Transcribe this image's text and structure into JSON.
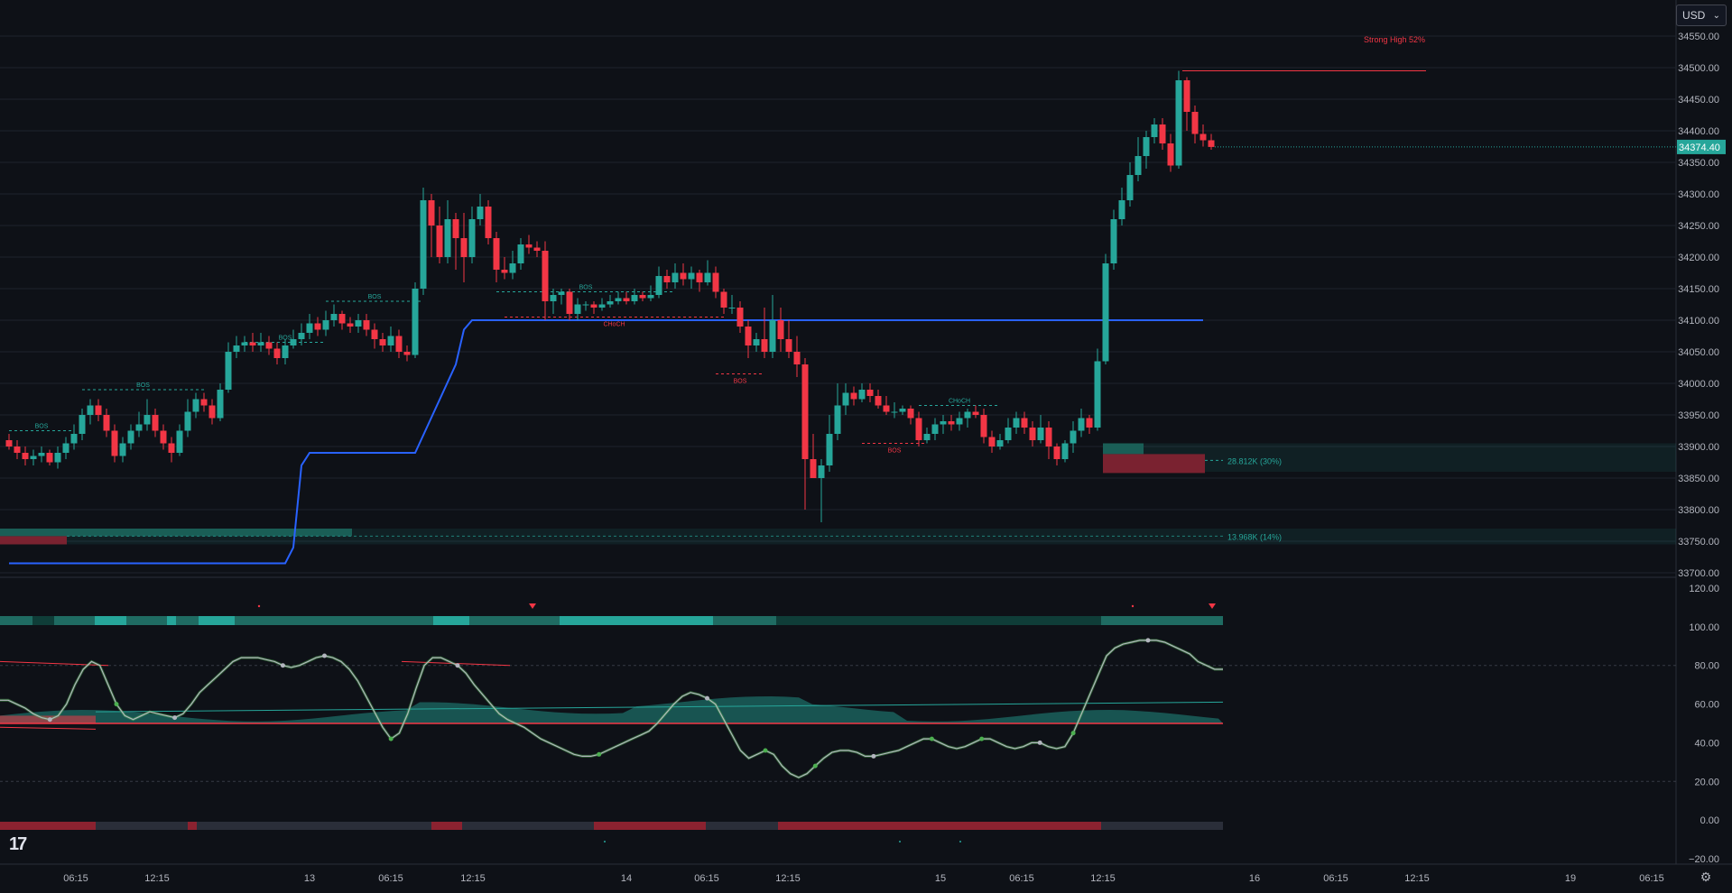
{
  "price_axis": {
    "currency": "USD",
    "current_price": "34374.40",
    "current_price_value": 34374.4
  },
  "x_axis_labels": [
    "06:15",
    "12:15",
    "13",
    "06:15",
    "12:15",
    "14",
    "06:15",
    "12:15",
    "15",
    "06:15",
    "12:15",
    "16",
    "06:15",
    "12:15",
    "19",
    "06:15"
  ],
  "annotations": {
    "strong_high": "Strong High 52%",
    "ob_upper": "28.812K (30%)",
    "ob_lower": "13.968K (14%)",
    "bos": "BOS",
    "choch": "CHoCH"
  },
  "colors": {
    "bull": "#26a69a",
    "bear": "#f23645",
    "trail": "#2962ff",
    "bg": "#0e1117",
    "grid": "#1e222d",
    "text": "#b2b5be"
  },
  "chart_data": [
    {
      "type": "candlestick",
      "title": "",
      "ylim": [
        33700,
        34580
      ],
      "yticks": [
        34550,
        34500,
        34450,
        34400,
        34350,
        34300,
        34250,
        34200,
        34150,
        34100,
        34050,
        34000,
        33950,
        33900,
        33850,
        33800,
        33750,
        33700
      ],
      "candles": [
        [
          33910,
          33900,
          33920,
          33895
        ],
        [
          33900,
          33890,
          33910,
          33880
        ],
        [
          33890,
          33880,
          33900,
          33870
        ],
        [
          33880,
          33885,
          33895,
          33870
        ],
        [
          33885,
          33890,
          33900,
          33875
        ],
        [
          33890,
          33875,
          33895,
          33870
        ],
        [
          33875,
          33890,
          33900,
          33865
        ],
        [
          33890,
          33905,
          33915,
          33880
        ],
        [
          33905,
          33920,
          33935,
          33895
        ],
        [
          33920,
          33950,
          33960,
          33910
        ],
        [
          33950,
          33965,
          33975,
          33935
        ],
        [
          33965,
          33950,
          33975,
          33940
        ],
        [
          33950,
          33925,
          33960,
          33915
        ],
        [
          33925,
          33885,
          33935,
          33875
        ],
        [
          33885,
          33905,
          33915,
          33875
        ],
        [
          33905,
          33925,
          33935,
          33895
        ],
        [
          33925,
          33935,
          33955,
          33915
        ],
        [
          33935,
          33950,
          33975,
          33925
        ],
        [
          33950,
          33925,
          33960,
          33915
        ],
        [
          33925,
          33905,
          33935,
          33895
        ],
        [
          33905,
          33890,
          33915,
          33875
        ],
        [
          33890,
          33925,
          33935,
          33885
        ],
        [
          33925,
          33955,
          33975,
          33915
        ],
        [
          33955,
          33975,
          33985,
          33945
        ],
        [
          33975,
          33965,
          33985,
          33955
        ],
        [
          33965,
          33945,
          33975,
          33935
        ],
        [
          33945,
          33990,
          34000,
          33940
        ],
        [
          33990,
          34050,
          34065,
          33985
        ],
        [
          34050,
          34060,
          34075,
          34040
        ],
        [
          34060,
          34065,
          34075,
          34050
        ],
        [
          34065,
          34060,
          34080,
          34050
        ],
        [
          34060,
          34065,
          34080,
          34050
        ],
        [
          34065,
          34055,
          34075,
          34045
        ],
        [
          34055,
          34040,
          34065,
          34030
        ],
        [
          34040,
          34060,
          34070,
          34030
        ],
        [
          34060,
          34070,
          34085,
          34055
        ],
        [
          34070,
          34080,
          34095,
          34060
        ],
        [
          34080,
          34095,
          34110,
          34070
        ],
        [
          34095,
          34085,
          34105,
          34075
        ],
        [
          34085,
          34100,
          34115,
          34075
        ],
        [
          34100,
          34110,
          34125,
          34090
        ],
        [
          34110,
          34095,
          34115,
          34085
        ],
        [
          34095,
          34090,
          34105,
          34080
        ],
        [
          34090,
          34100,
          34110,
          34080
        ],
        [
          34100,
          34085,
          34110,
          34075
        ],
        [
          34085,
          34070,
          34095,
          34055
        ],
        [
          34070,
          34060,
          34080,
          34050
        ],
        [
          34060,
          34075,
          34090,
          34050
        ],
        [
          34075,
          34050,
          34085,
          34040
        ],
        [
          34050,
          34045,
          34060,
          34035
        ],
        [
          34045,
          34150,
          34160,
          34040
        ],
        [
          34150,
          34290,
          34310,
          34140
        ],
        [
          34290,
          34250,
          34300,
          34200
        ],
        [
          34250,
          34200,
          34280,
          34190
        ],
        [
          34200,
          34260,
          34290,
          34190
        ],
        [
          34260,
          34230,
          34270,
          34180
        ],
        [
          34230,
          34200,
          34270,
          34160
        ],
        [
          34200,
          34260,
          34280,
          34190
        ],
        [
          34260,
          34280,
          34300,
          34250
        ],
        [
          34280,
          34230,
          34290,
          34220
        ],
        [
          34230,
          34180,
          34240,
          34160
        ],
        [
          34180,
          34175,
          34200,
          34165
        ],
        [
          34175,
          34190,
          34210,
          34165
        ],
        [
          34190,
          34220,
          34230,
          34180
        ],
        [
          34220,
          34215,
          34235,
          34205
        ],
        [
          34215,
          34210,
          34225,
          34200
        ],
        [
          34210,
          34130,
          34225,
          34100
        ],
        [
          34130,
          34140,
          34150,
          34110
        ],
        [
          34140,
          34145,
          34150,
          34125
        ],
        [
          34145,
          34110,
          34150,
          34100
        ],
        [
          34110,
          34125,
          34135,
          34100
        ],
        [
          34125,
          34125,
          34130,
          34115
        ],
        [
          34125,
          34120,
          34130,
          34110
        ],
        [
          34120,
          34125,
          34135,
          34115
        ],
        [
          34125,
          34130,
          34140,
          34120
        ],
        [
          34130,
          34135,
          34145,
          34125
        ],
        [
          34135,
          34130,
          34145,
          34125
        ],
        [
          34130,
          34140,
          34150,
          34125
        ],
        [
          34140,
          34135,
          34145,
          34130
        ],
        [
          34135,
          34140,
          34155,
          34130
        ],
        [
          34140,
          34170,
          34185,
          34135
        ],
        [
          34170,
          34160,
          34180,
          34150
        ],
        [
          34160,
          34175,
          34190,
          34150
        ],
        [
          34175,
          34165,
          34190,
          34155
        ],
        [
          34165,
          34175,
          34185,
          34150
        ],
        [
          34175,
          34160,
          34180,
          34145
        ],
        [
          34160,
          34175,
          34195,
          34155
        ],
        [
          34175,
          34145,
          34185,
          34135
        ],
        [
          34145,
          34120,
          34150,
          34110
        ],
        [
          34120,
          34120,
          34140,
          34110
        ],
        [
          34120,
          34090,
          34130,
          34080
        ],
        [
          34090,
          34060,
          34100,
          34040
        ],
        [
          34060,
          34070,
          34080,
          34050
        ],
        [
          34070,
          34050,
          34120,
          34040
        ],
        [
          34050,
          34100,
          34140,
          34040
        ],
        [
          34100,
          34070,
          34120,
          34050
        ],
        [
          34070,
          34050,
          34100,
          34040
        ],
        [
          34050,
          34030,
          34075,
          34010
        ],
        [
          34030,
          33880,
          34040,
          33800
        ],
        [
          33880,
          33850,
          33920,
          33850
        ],
        [
          33850,
          33870,
          33880,
          33780
        ],
        [
          33870,
          33920,
          33950,
          33860
        ],
        [
          33920,
          33965,
          34000,
          33910
        ],
        [
          33965,
          33985,
          34000,
          33950
        ],
        [
          33985,
          33975,
          33995,
          33965
        ],
        [
          33975,
          33990,
          34000,
          33970
        ],
        [
          33990,
          33980,
          34000,
          33970
        ],
        [
          33980,
          33965,
          33990,
          33960
        ],
        [
          33965,
          33955,
          33980,
          33950
        ],
        [
          33955,
          33955,
          33970,
          33945
        ],
        [
          33955,
          33960,
          33965,
          33950
        ],
        [
          33960,
          33945,
          33965,
          33935
        ],
        [
          33945,
          33910,
          33955,
          33900
        ],
        [
          33910,
          33920,
          33930,
          33905
        ],
        [
          33920,
          33935,
          33945,
          33910
        ],
        [
          33935,
          33940,
          33950,
          33920
        ],
        [
          33940,
          33935,
          33950,
          33925
        ],
        [
          33935,
          33945,
          33955,
          33925
        ],
        [
          33945,
          33955,
          33960,
          33930
        ],
        [
          33955,
          33950,
          33965,
          33945
        ],
        [
          33950,
          33915,
          33960,
          33905
        ],
        [
          33915,
          33900,
          33925,
          33890
        ],
        [
          33900,
          33910,
          33920,
          33895
        ],
        [
          33910,
          33930,
          33945,
          33905
        ],
        [
          33930,
          33945,
          33955,
          33920
        ],
        [
          33945,
          33930,
          33955,
          33920
        ],
        [
          33930,
          33910,
          33940,
          33900
        ],
        [
          33910,
          33930,
          33950,
          33905
        ],
        [
          33930,
          33900,
          33940,
          33880
        ],
        [
          33900,
          33880,
          33905,
          33870
        ],
        [
          33880,
          33905,
          33910,
          33875
        ],
        [
          33905,
          33925,
          33940,
          33890
        ],
        [
          33925,
          33945,
          33960,
          33915
        ],
        [
          33945,
          33930,
          33950,
          33920
        ],
        [
          33930,
          34035,
          34055,
          33925
        ],
        [
          34035,
          34190,
          34205,
          34030
        ],
        [
          34190,
          34260,
          34275,
          34180
        ],
        [
          34260,
          34290,
          34310,
          34250
        ],
        [
          34290,
          34330,
          34350,
          34280
        ],
        [
          34330,
          34360,
          34390,
          34320
        ],
        [
          34360,
          34390,
          34400,
          34340
        ],
        [
          34390,
          34410,
          34420,
          34380
        ],
        [
          34410,
          34380,
          34420,
          34370
        ],
        [
          34380,
          34345,
          34395,
          34335
        ],
        [
          34345,
          34480,
          34495,
          34340
        ],
        [
          34480,
          34430,
          34485,
          34400
        ],
        [
          34430,
          34395,
          34440,
          34380
        ],
        [
          34395,
          34385,
          34410,
          34375
        ],
        [
          34385,
          34374.4,
          34395,
          34370
        ]
      ],
      "bull_color": "#26a69a",
      "bear_color": "#f23645",
      "overlay_line": {
        "color": "#2962ff",
        "points": [
          [
            0,
            33715
          ],
          [
            34,
            33715
          ],
          [
            35,
            33740
          ],
          [
            36,
            33870
          ],
          [
            37,
            33890
          ],
          [
            50,
            33890
          ],
          [
            55,
            34030
          ],
          [
            56,
            34085
          ],
          [
            57,
            34100
          ],
          [
            147,
            34100
          ]
        ]
      }
    },
    {
      "type": "line",
      "title": "",
      "ylim": [
        -20,
        120
      ],
      "yticks": [
        120,
        100,
        80,
        60,
        40,
        20,
        0,
        -20
      ],
      "series": [
        {
          "values": [
            62,
            62,
            60,
            58,
            55,
            53,
            52,
            54,
            60,
            70,
            78,
            82,
            80,
            70,
            60,
            54,
            52,
            54,
            56,
            55,
            54,
            53,
            55,
            60,
            66,
            70,
            74,
            78,
            82,
            84,
            84,
            84,
            83,
            82,
            80,
            79,
            80,
            82,
            84,
            85,
            84,
            82,
            78,
            72,
            64,
            56,
            48,
            42,
            45,
            55,
            68,
            80,
            84,
            84,
            82,
            80,
            76,
            70,
            65,
            60,
            55,
            52,
            50,
            48,
            45,
            42,
            40,
            38,
            36,
            34,
            33,
            33,
            34,
            36,
            38,
            40,
            42,
            44,
            46,
            50,
            55,
            60,
            64,
            66,
            65,
            63,
            60,
            52,
            44,
            36,
            32,
            34,
            36,
            34,
            28,
            24,
            22,
            24,
            28,
            32,
            35,
            36,
            36,
            35,
            33,
            33,
            34,
            35,
            36,
            38,
            40,
            42,
            42,
            40,
            38,
            37,
            38,
            40,
            42,
            42,
            40,
            38,
            37,
            38,
            40,
            40,
            38,
            37,
            38,
            45,
            55,
            65,
            75,
            85,
            89,
            91,
            92,
            93,
            93,
            93,
            92,
            90,
            88,
            86,
            82,
            80,
            78,
            78
          ]
        }
      ]
    }
  ]
}
